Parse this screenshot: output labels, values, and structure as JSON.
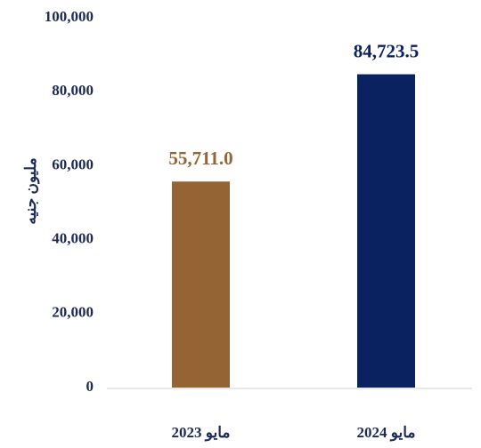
{
  "chart_data": {
    "type": "bar",
    "y_label": "مليون جنيه",
    "categories": [
      "مايو 2023",
      "مايو 2024"
    ],
    "values": [
      55711.0,
      84723.5
    ],
    "value_labels": [
      "55,711.0",
      "84,723.5"
    ],
    "colors": [
      "#946434",
      "#0b2260"
    ],
    "ylim": [
      0,
      100000
    ],
    "yticks": [
      0,
      {
        "value": 20000,
        "label": "20,000"
      },
      {
        "value": 40000,
        "label": "40,000"
      },
      {
        "value": 60000,
        "label": "60,000"
      },
      {
        "value": 80000,
        "label": "80,000"
      },
      {
        "value": 100000,
        "label": "100,000"
      }
    ],
    "grid": false
  }
}
